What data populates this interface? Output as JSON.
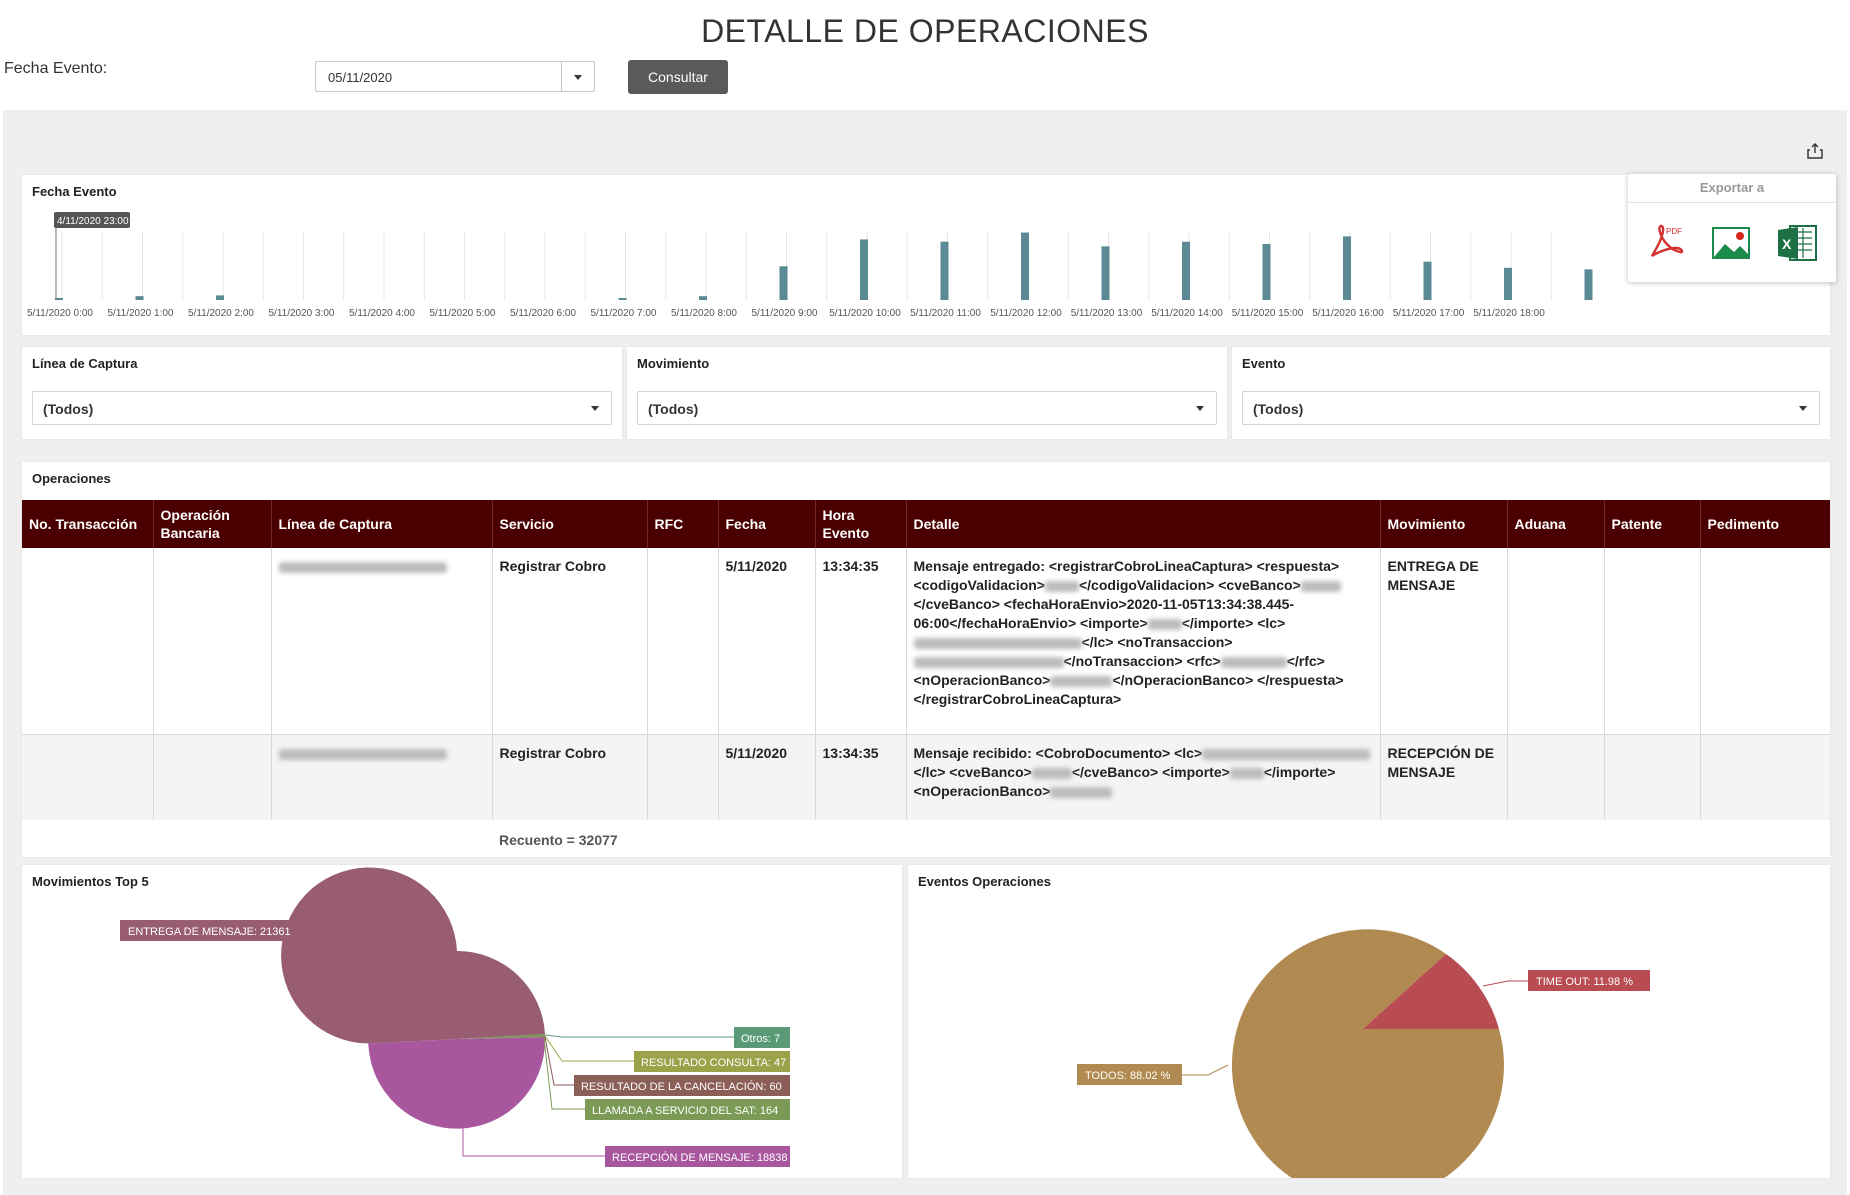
{
  "page": {
    "title": "DETALLE DE OPERACIONES"
  },
  "filter": {
    "label": "Fecha Evento:",
    "date_value": "05/11/2020",
    "button_label": "Consultar"
  },
  "export": {
    "title": "Exportar a",
    "options": [
      "pdf-icon",
      "image-icon",
      "excel-icon"
    ]
  },
  "timeline": {
    "title": "Fecha Evento",
    "tooltip": "4/11/2020 23:00",
    "tick_labels": [
      "5/11/2020 0:00",
      "5/11/2020 1:00",
      "5/11/2020 2:00",
      "5/11/2020 3:00",
      "5/11/2020 4:00",
      "5/11/2020 5:00",
      "5/11/2020 6:00",
      "5/11/2020 7:00",
      "5/11/2020 8:00",
      "5/11/2020 9:00",
      "5/11/2020 10:00",
      "5/11/2020 11:00",
      "5/11/2020 12:00",
      "5/11/2020 13:00",
      "5/11/2020 14:00",
      "5/11/2020 15:00",
      "5/11/2020 16:00",
      "5/11/2020 17:00",
      "5/11/2020 18:00"
    ],
    "bar_color": "#5b8a94"
  },
  "chart_data": [
    {
      "type": "bar",
      "title": "Fecha Evento",
      "categories": [
        "4/11/2020 23:00",
        "5/11/2020 0:00",
        "5/11/2020 1:00",
        "5/11/2020 2:00",
        "5/11/2020 3:00",
        "5/11/2020 4:00",
        "5/11/2020 5:00",
        "5/11/2020 6:00",
        "5/11/2020 7:00",
        "5/11/2020 8:00",
        "5/11/2020 9:00",
        "5/11/2020 10:00",
        "5/11/2020 11:00",
        "5/11/2020 12:00",
        "5/11/2020 13:00",
        "5/11/2020 14:00",
        "5/11/2020 15:00",
        "5/11/2020 16:00",
        "5/11/2020 17:00",
        "5/11/2020 18:00"
      ],
      "values": [
        1,
        5,
        6,
        0,
        0,
        0,
        0,
        1,
        5,
        44,
        79,
        76,
        88,
        70,
        76,
        73,
        83,
        50,
        42,
        40
      ],
      "grid": true
    },
    {
      "type": "pie",
      "title": "Movimientos Top 5",
      "labels": [
        "ENTREGA DE MENSAJE",
        "RECEPCIÓN DE MENSAJE",
        "LLAMADA A SERVICIO DEL SAT",
        "RESULTADO DE LA CANCELACIÓN",
        "RESULTADO CONSULTA",
        "Otros"
      ],
      "values": [
        21361,
        18838,
        164,
        60,
        47,
        7
      ],
      "colors": [
        "#985d70",
        "#a8579e",
        "#7a9a55",
        "#8c5e58",
        "#9ca24a",
        "#5b9a76"
      ]
    },
    {
      "type": "pie",
      "title": "Eventos Operaciones",
      "labels": [
        "TODOS",
        "TIME OUT"
      ],
      "values": [
        88.02,
        11.98
      ],
      "unit": "%",
      "colors": [
        "#b08a50",
        "#b84c52"
      ]
    }
  ],
  "filters": [
    {
      "label": "Línea de Captura",
      "value": "(Todos)"
    },
    {
      "label": "Movimiento",
      "value": "(Todos)"
    },
    {
      "label": "Evento",
      "value": "(Todos)"
    }
  ],
  "operations": {
    "title": "Operaciones",
    "columns": [
      "No. Transacción",
      "Operación Bancaria",
      "Línea de Captura",
      "Servicio",
      "RFC",
      "Fecha",
      "Hora Evento",
      "Detalle",
      "Movimiento",
      "Aduana",
      "Patente",
      "Pedimento"
    ],
    "rows": [
      {
        "servicio": "Registrar Cobro",
        "fecha": "5/11/2020",
        "hora": "13:34:35",
        "movimiento": "ENTREGA DE MENSAJE",
        "detalle": [
          "Mensaje entregado: <registrarCobroLineaCaptura> <respuesta>",
          "<codigoValidacion>",
          "</codigoValidacion>",
          "<cveBanco>",
          "</cveBanco> <fechaHoraEnvio>2020-11-05T13:34:38.445-06:00</fechaHoraEnvio>",
          "<importe>",
          "</importe> <lc>",
          "</lc>",
          "<noTransaccion>",
          "</noTransaccion>",
          "<rfc>",
          "</rfc>",
          "<nOperacionBanco>",
          "</nOperacionBanco> </respuesta> </registrarCobroLineaCaptura>"
        ]
      },
      {
        "servicio": "Registrar Cobro",
        "fecha": "5/11/2020",
        "hora": "13:34:35",
        "movimiento": "RECEPCIÓN DE MENSAJE",
        "detalle": [
          "Mensaje recibido: <CobroDocumento>",
          "<lc>",
          "</lc> <cveBanco>",
          "</cveBanco>",
          "<importe>",
          "</importe> <nOperacionBanco>"
        ]
      }
    ],
    "recuento": "Recuento = 32077"
  },
  "pie_movimientos": {
    "title": "Movimientos Top 5",
    "labels": [
      "ENTREGA DE MENSAJE: 21361",
      "Otros: 7",
      "RESULTADO CONSULTA: 47",
      "RESULTADO DE LA CANCELACIÓN: 60",
      "LLAMADA A SERVICIO DEL SAT: 164",
      "RECEPCIÓN DE MENSAJE: 18838"
    ]
  },
  "pie_eventos": {
    "title": "Eventos Operaciones",
    "labels": [
      "TIME OUT: 11.98 %",
      "TODOS: 88.02 %"
    ]
  }
}
